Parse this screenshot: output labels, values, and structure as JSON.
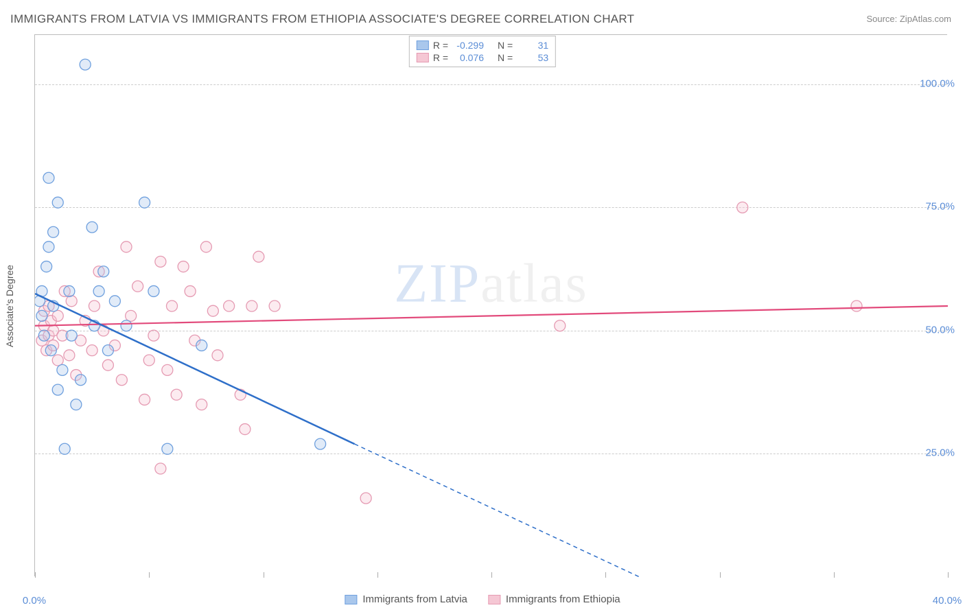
{
  "title": "IMMIGRANTS FROM LATVIA VS IMMIGRANTS FROM ETHIOPIA ASSOCIATE'S DEGREE CORRELATION CHART",
  "source": "Source: ZipAtlas.com",
  "y_axis_label": "Associate's Degree",
  "watermark_a": "ZIP",
  "watermark_b": "atlas",
  "chart": {
    "type": "scatter",
    "xlim": [
      0,
      40
    ],
    "ylim": [
      0,
      110
    ],
    "xtick_positions": [
      0,
      5,
      10,
      15,
      20,
      25,
      30,
      35,
      40
    ],
    "ytick_positions": [
      25,
      50,
      75,
      100
    ],
    "xtick_labels": {
      "0": "0.0%",
      "40": "40.0%"
    },
    "ytick_labels": {
      "25": "25.0%",
      "50": "50.0%",
      "75": "75.0%",
      "100": "100.0%"
    },
    "background_color": "#ffffff",
    "grid_color": "#cccccc",
    "marker_radius": 8,
    "series": [
      {
        "id": "latvia",
        "label": "Immigrants from Latvia",
        "color_stroke": "#6fa0de",
        "color_fill": "#a9c7ec",
        "R": "-0.299",
        "N": "31",
        "line": {
          "x1": 0,
          "y1": 57.5,
          "x2": 14,
          "y2": 27,
          "ext_x2": 29.5,
          "ext_y2": -6.5,
          "color": "#2e6fc9",
          "width": 2.5,
          "dash": "6,5"
        },
        "points": [
          [
            0.2,
            56
          ],
          [
            0.3,
            53
          ],
          [
            0.3,
            58
          ],
          [
            0.4,
            49
          ],
          [
            0.5,
            63
          ],
          [
            0.6,
            67
          ],
          [
            0.6,
            81
          ],
          [
            0.7,
            46
          ],
          [
            0.8,
            70
          ],
          [
            0.8,
            55
          ],
          [
            1.0,
            76
          ],
          [
            1.0,
            38
          ],
          [
            1.2,
            42
          ],
          [
            1.3,
            26
          ],
          [
            1.5,
            58
          ],
          [
            1.6,
            49
          ],
          [
            1.8,
            35
          ],
          [
            2.0,
            40
          ],
          [
            2.2,
            104
          ],
          [
            2.5,
            71
          ],
          [
            2.6,
            51
          ],
          [
            2.8,
            58
          ],
          [
            3.0,
            62
          ],
          [
            3.2,
            46
          ],
          [
            3.5,
            56
          ],
          [
            4.0,
            51
          ],
          [
            4.8,
            76
          ],
          [
            5.2,
            58
          ],
          [
            5.8,
            26
          ],
          [
            7.3,
            47
          ],
          [
            12.5,
            27
          ]
        ]
      },
      {
        "id": "ethiopia",
        "label": "Immigrants from Ethiopia",
        "color_stroke": "#e59ab2",
        "color_fill": "#f5c7d4",
        "R": "0.076",
        "N": "53",
        "line": {
          "x1": 0,
          "y1": 51,
          "x2": 40,
          "y2": 55,
          "color": "#e24a7b",
          "width": 2.2
        },
        "points": [
          [
            0.3,
            48
          ],
          [
            0.4,
            51
          ],
          [
            0.4,
            54
          ],
          [
            0.5,
            46
          ],
          [
            0.6,
            49
          ],
          [
            0.6,
            55
          ],
          [
            0.7,
            52
          ],
          [
            0.8,
            50
          ],
          [
            0.8,
            47
          ],
          [
            1.0,
            53
          ],
          [
            1.0,
            44
          ],
          [
            1.2,
            49
          ],
          [
            1.3,
            58
          ],
          [
            1.5,
            45
          ],
          [
            1.6,
            56
          ],
          [
            1.8,
            41
          ],
          [
            2.0,
            48
          ],
          [
            2.2,
            52
          ],
          [
            2.5,
            46
          ],
          [
            2.6,
            55
          ],
          [
            2.8,
            62
          ],
          [
            3.0,
            50
          ],
          [
            3.2,
            43
          ],
          [
            3.5,
            47
          ],
          [
            3.8,
            40
          ],
          [
            4.0,
            67
          ],
          [
            4.2,
            53
          ],
          [
            4.5,
            59
          ],
          [
            4.8,
            36
          ],
          [
            5.0,
            44
          ],
          [
            5.2,
            49
          ],
          [
            5.5,
            64
          ],
          [
            5.8,
            42
          ],
          [
            6.0,
            55
          ],
          [
            6.2,
            37
          ],
          [
            6.5,
            63
          ],
          [
            6.8,
            58
          ],
          [
            7.0,
            48
          ],
          [
            7.3,
            35
          ],
          [
            7.5,
            67
          ],
          [
            7.8,
            54
          ],
          [
            8.0,
            45
          ],
          [
            8.5,
            55
          ],
          [
            9.0,
            37
          ],
          [
            9.2,
            30
          ],
          [
            9.5,
            55
          ],
          [
            9.8,
            65
          ],
          [
            10.5,
            55
          ],
          [
            14.5,
            16
          ],
          [
            23.0,
            51
          ],
          [
            31.0,
            75
          ],
          [
            36.0,
            55
          ],
          [
            5.5,
            22
          ]
        ]
      }
    ]
  },
  "legend_top": {
    "r_prefix": "R =",
    "n_prefix": "N ="
  }
}
